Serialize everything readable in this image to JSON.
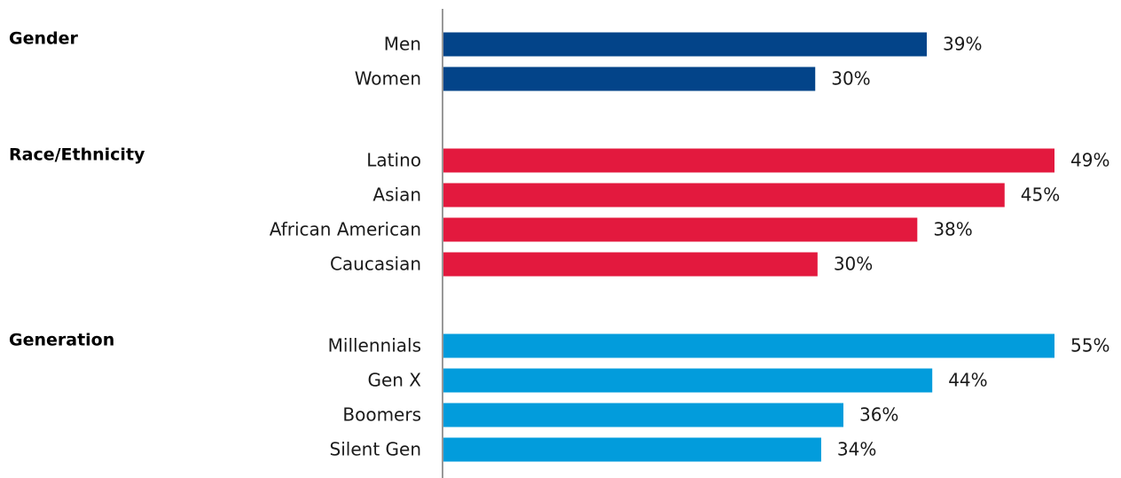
{
  "chart_data": {
    "type": "bar",
    "orientation": "horizontal",
    "title": "",
    "xlabel": "",
    "ylabel": "",
    "value_unit": "%",
    "grid": false,
    "legend": "none",
    "groups": [
      {
        "title": "Gender",
        "color": "#034489",
        "categories": [
          "Men",
          "Women"
        ],
        "values": [
          39,
          30
        ],
        "labels": [
          "39%",
          "30%"
        ]
      },
      {
        "title": "Race/Ethnicity",
        "color": "#e3193e",
        "categories": [
          "Latino",
          "Asian",
          "African American",
          "Caucasian"
        ],
        "values": [
          49,
          45,
          38,
          30
        ],
        "labels": [
          "49%",
          "45%",
          "38%",
          "30%"
        ]
      },
      {
        "title": "Generation",
        "color": "#029cdc",
        "categories": [
          "Millennials",
          "Gen X",
          "Boomers",
          "Silent Gen"
        ],
        "values": [
          55,
          44,
          36,
          34
        ],
        "labels": [
          "55%",
          "44%",
          "36%",
          "34%"
        ]
      }
    ]
  }
}
